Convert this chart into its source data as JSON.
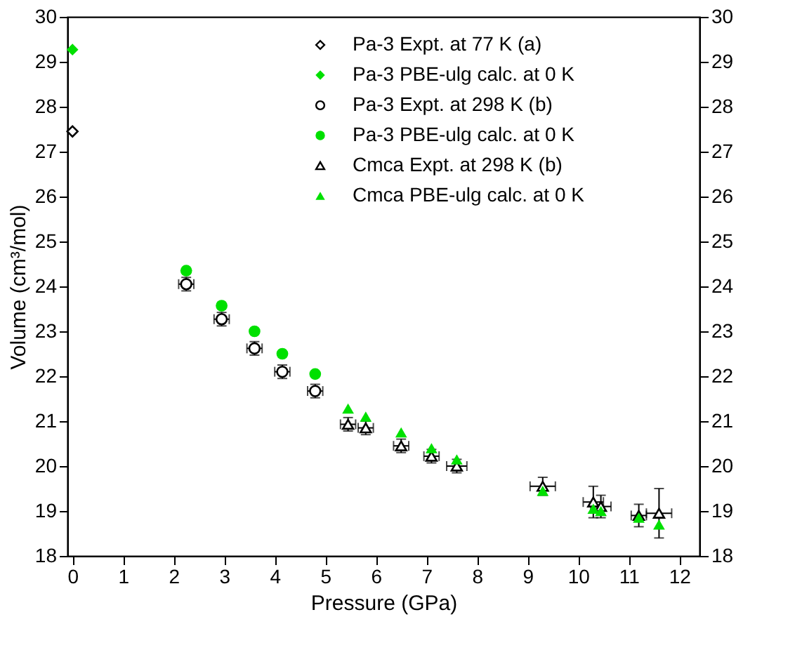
{
  "chart_data": {
    "type": "scatter",
    "xlabel": "Pressure (GPa)",
    "ylabel": "Volume (cm³/mol)",
    "xlim": [
      -0.1,
      12.4
    ],
    "ylim": [
      18,
      30
    ],
    "xticks": [
      0,
      1,
      2,
      3,
      4,
      5,
      6,
      7,
      8,
      9,
      10,
      11,
      12
    ],
    "yticks": [
      18,
      19,
      20,
      21,
      22,
      23,
      24,
      25,
      26,
      27,
      28,
      29,
      30
    ],
    "y2lim": [
      18,
      30
    ],
    "y2ticks": [
      18,
      19,
      20,
      21,
      22,
      23,
      24,
      25,
      26,
      27,
      28,
      29,
      30
    ],
    "grid": false,
    "legend": "top right",
    "series": [
      {
        "name": "Pa-3 Expt. at 77 K (a)",
        "color": "#000000",
        "marker": "diamond",
        "x": [
          0
        ],
        "values": [
          27.45
        ]
      },
      {
        "name": "Pa-3 PBE-ulg calc. at 0 K",
        "color": "#00e000",
        "marker": "diamond",
        "x": [
          0
        ],
        "values": [
          29.27
        ]
      },
      {
        "name": "Pa-3 Expt. at 298 K (b)",
        "color": "#000000",
        "marker": "circle",
        "x": [
          2.25,
          2.95,
          3.6,
          4.15,
          4.8
        ],
        "values": [
          24.05,
          23.27,
          22.62,
          22.1,
          21.67
        ],
        "errors": [
          0.15,
          0.15,
          0.15,
          0.15,
          0.15
        ],
        "xerrors": [
          0.15,
          0.15,
          0.15,
          0.15,
          0.15
        ]
      },
      {
        "name": "Pa-3 PBE-ulg calc. at 0 K",
        "color": "#00e000",
        "marker": "circle",
        "x": [
          2.25,
          2.95,
          3.6,
          4.15,
          4.8
        ],
        "values": [
          24.35,
          23.57,
          23.0,
          22.5,
          22.05
        ]
      },
      {
        "name": "Cmca Expt. at 298 K (b)",
        "color": "#000000",
        "marker": "triangle",
        "x": [
          5.45,
          5.8,
          6.5,
          7.1,
          7.6,
          9.3,
          10.3,
          10.45,
          11.2,
          11.6
        ],
        "values": [
          20.93,
          20.85,
          20.45,
          20.22,
          20.0,
          19.55,
          19.2,
          19.1,
          18.9,
          18.95
        ],
        "errors": [
          0.15,
          0.15,
          0.15,
          0.15,
          0.15,
          0.2,
          0.35,
          0.25,
          0.25,
          0.55
        ],
        "xerrors": [
          0.15,
          0.15,
          0.15,
          0.15,
          0.2,
          0.25,
          0.2,
          0.2,
          0.15,
          0.25
        ]
      },
      {
        "name": "Cmca PBE-ulg calc. at 0 K",
        "color": "#00e000",
        "marker": "triangle",
        "x": [
          5.45,
          5.8,
          6.5,
          7.1,
          7.6,
          9.3,
          10.3,
          10.45,
          11.2,
          11.6
        ],
        "values": [
          21.28,
          21.1,
          20.75,
          20.4,
          20.15,
          19.45,
          19.05,
          19.0,
          18.85,
          18.7
        ]
      }
    ]
  }
}
